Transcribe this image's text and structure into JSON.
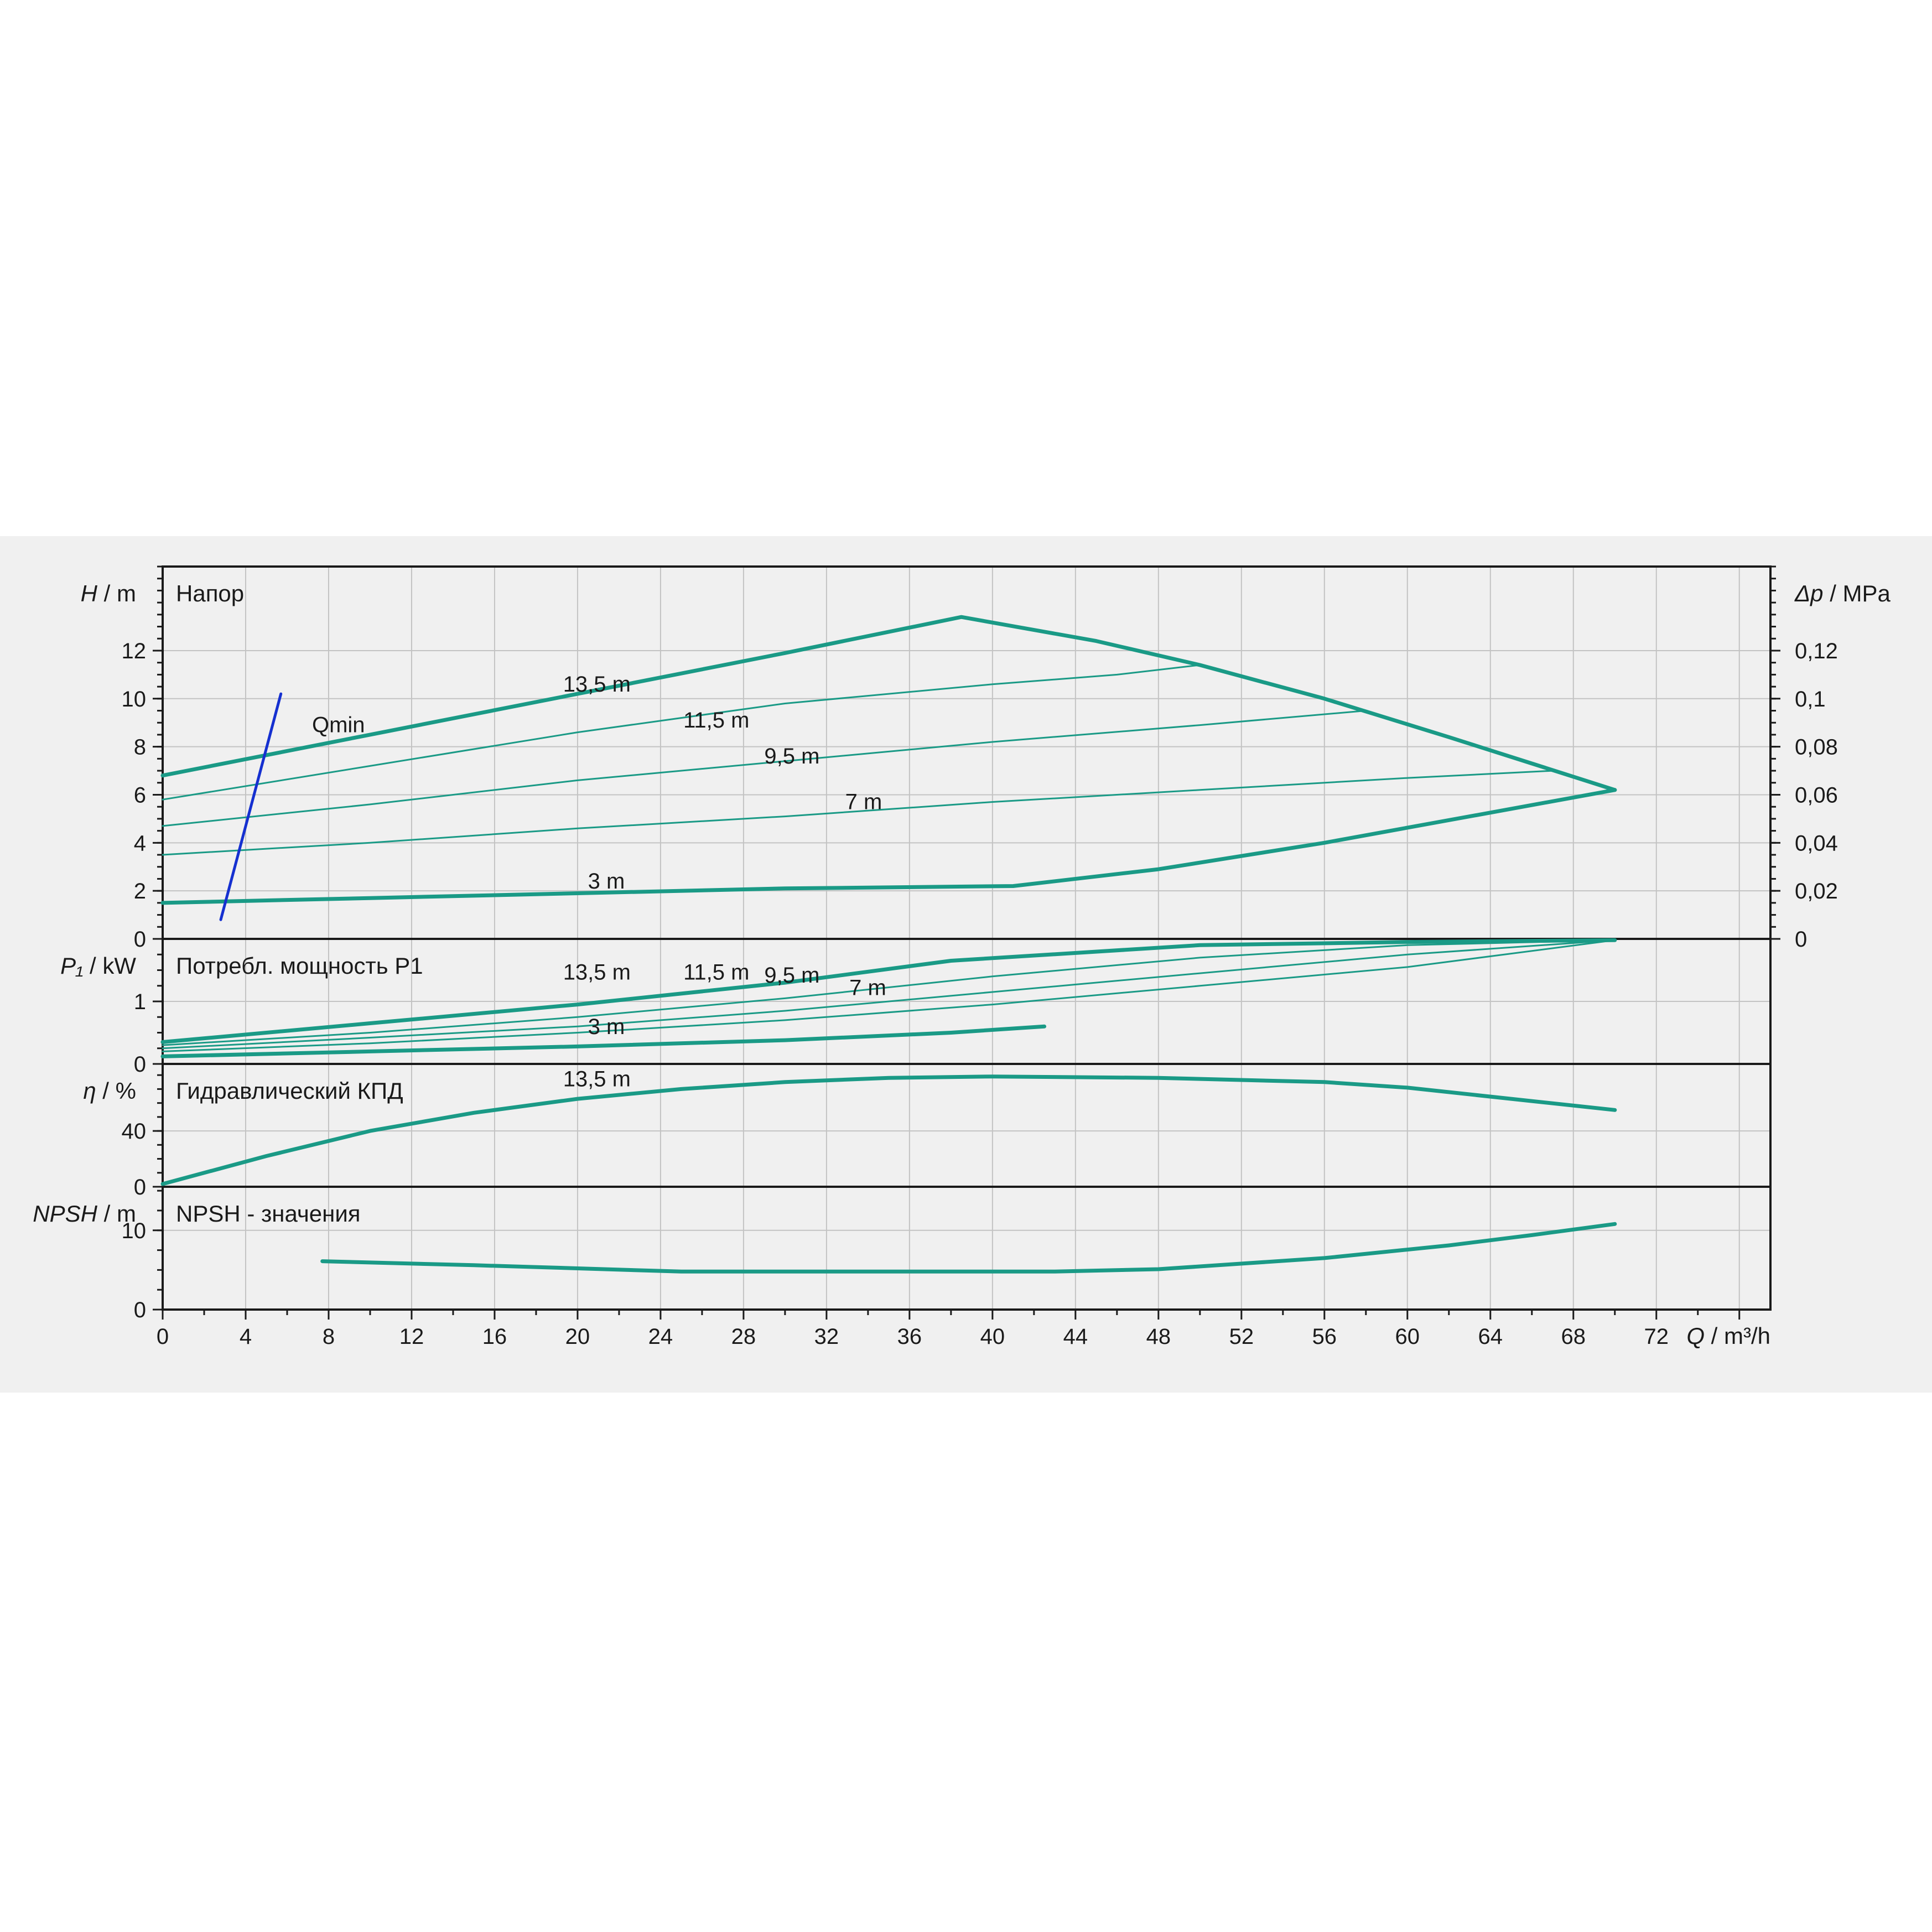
{
  "colors": {
    "curve": "#1a9a86",
    "qmin": "#1530d0",
    "grid": "#c3c3c3",
    "axis": "#1a1a1a",
    "panel": "#f0f0f0"
  },
  "chart_data": [
    {
      "type": "line",
      "title": "Напор",
      "ylabel_sym": "H",
      "ylabel_unit": " / m",
      "y2label_sym": "Δp",
      "y2label_unit": " / MPa",
      "ylim": [
        0,
        15.5
      ],
      "yticks": [
        0,
        2,
        4,
        6,
        8,
        10,
        12
      ],
      "y2ticks": [
        "0",
        "0,02",
        "0,04",
        "0,06",
        "0,08",
        "0,1",
        "0,12"
      ],
      "series": [
        {
          "name": "13,5 m",
          "width": "thick",
          "points": [
            [
              0,
              6.8
            ],
            [
              10,
              8.5
            ],
            [
              20,
              10.2
            ],
            [
              30,
              11.9
            ],
            [
              38.5,
              13.4
            ],
            [
              45,
              12.4
            ],
            [
              50,
              11.4
            ],
            [
              56,
              10.0
            ],
            [
              62,
              8.4
            ],
            [
              66,
              7.3
            ],
            [
              70,
              6.2
            ]
          ]
        },
        {
          "name": "11,5 m",
          "width": "thin",
          "points": [
            [
              0,
              5.8
            ],
            [
              10,
              7.2
            ],
            [
              20,
              8.6
            ],
            [
              30,
              9.8
            ],
            [
              40,
              10.6
            ],
            [
              46,
              11.0
            ],
            [
              50,
              11.4
            ]
          ]
        },
        {
          "name": "9,5 m",
          "width": "thin",
          "points": [
            [
              0,
              4.7
            ],
            [
              10,
              5.6
            ],
            [
              20,
              6.6
            ],
            [
              30,
              7.4
            ],
            [
              40,
              8.2
            ],
            [
              50,
              8.9
            ],
            [
              58,
              9.5
            ]
          ]
        },
        {
          "name": "7 m",
          "width": "thin",
          "points": [
            [
              0,
              3.5
            ],
            [
              10,
              4.0
            ],
            [
              20,
              4.6
            ],
            [
              30,
              5.1
            ],
            [
              40,
              5.7
            ],
            [
              50,
              6.2
            ],
            [
              60,
              6.7
            ],
            [
              67,
              7.0
            ]
          ]
        },
        {
          "name": "3 m",
          "width": "thick",
          "points": [
            [
              0,
              1.5
            ],
            [
              10,
              1.7
            ],
            [
              20,
              1.9
            ],
            [
              30,
              2.1
            ],
            [
              41,
              2.2
            ],
            [
              48,
              2.9
            ],
            [
              56,
              4.0
            ],
            [
              63,
              5.1
            ],
            [
              70,
              6.2
            ]
          ]
        },
        {
          "name": "Qmin",
          "width": "qmin",
          "points": [
            [
              2.8,
              0.8
            ],
            [
              5.7,
              10.2
            ]
          ]
        }
      ],
      "labels": [
        {
          "text": "13,5 m",
          "x": 19.3,
          "y": 10.3
        },
        {
          "text": "11,5 m",
          "x": 25.1,
          "y": 8.8
        },
        {
          "text": "9,5 m",
          "x": 29.0,
          "y": 7.3
        },
        {
          "text": "7 m",
          "x": 32.9,
          "y": 5.4
        },
        {
          "text": "3 m",
          "x": 20.5,
          "y": 2.1
        },
        {
          "text": "Qmin",
          "x": 7.2,
          "y": 8.6
        }
      ]
    },
    {
      "type": "line",
      "title": "Потребл. мощность P1",
      "ylabel_sym": "P₁",
      "ylabel_unit": " / kW",
      "ylim": [
        0,
        2.0
      ],
      "yticks": [
        0,
        1
      ],
      "series": [
        {
          "name": "13,5 m",
          "width": "thick",
          "points": [
            [
              0,
              0.35
            ],
            [
              10,
              0.65
            ],
            [
              20,
              0.95
            ],
            [
              30,
              1.3
            ],
            [
              38,
              1.65
            ],
            [
              50,
              1.9
            ],
            [
              60,
              1.95
            ],
            [
              70,
              1.98
            ]
          ]
        },
        {
          "name": "11,5 m",
          "width": "thin",
          "points": [
            [
              0,
              0.3
            ],
            [
              10,
              0.5
            ],
            [
              20,
              0.75
            ],
            [
              30,
              1.05
            ],
            [
              40,
              1.4
            ],
            [
              50,
              1.7
            ],
            [
              60,
              1.9
            ],
            [
              70,
              1.98
            ]
          ]
        },
        {
          "name": "9,5 m",
          "width": "thin",
          "points": [
            [
              0,
              0.25
            ],
            [
              10,
              0.42
            ],
            [
              20,
              0.6
            ],
            [
              30,
              0.85
            ],
            [
              40,
              1.15
            ],
            [
              50,
              1.45
            ],
            [
              60,
              1.75
            ],
            [
              70,
              1.98
            ]
          ]
        },
        {
          "name": "7 m",
          "width": "thin",
          "points": [
            [
              0,
              0.2
            ],
            [
              10,
              0.33
            ],
            [
              20,
              0.5
            ],
            [
              30,
              0.7
            ],
            [
              40,
              0.95
            ],
            [
              50,
              1.25
            ],
            [
              60,
              1.55
            ],
            [
              70,
              1.98
            ]
          ]
        },
        {
          "name": "3 m",
          "width": "thick",
          "points": [
            [
              0,
              0.12
            ],
            [
              10,
              0.2
            ],
            [
              20,
              0.28
            ],
            [
              30,
              0.38
            ],
            [
              38,
              0.5
            ],
            [
              42.5,
              0.6
            ]
          ]
        }
      ],
      "labels": [
        {
          "text": "13,5 m",
          "x": 19.3,
          "y": 1.35
        },
        {
          "text": "11,5 m",
          "x": 25.1,
          "y": 1.35
        },
        {
          "text": "9,5 m",
          "x": 29.0,
          "y": 1.3
        },
        {
          "text": "7 m",
          "x": 33.1,
          "y": 1.1
        },
        {
          "text": "3 m",
          "x": 20.5,
          "y": 0.48
        }
      ]
    },
    {
      "type": "line",
      "title": "Гидравлический КПД",
      "ylabel_sym": "η",
      "ylabel_unit": " / %",
      "ylim": [
        0,
        88
      ],
      "yticks": [
        0,
        40
      ],
      "series": [
        {
          "name": "13,5 m",
          "width": "thick",
          "points": [
            [
              0,
              2
            ],
            [
              5,
              22
            ],
            [
              10,
              40
            ],
            [
              15,
              53
            ],
            [
              20,
              63
            ],
            [
              25,
              70
            ],
            [
              30,
              75
            ],
            [
              35,
              78
            ],
            [
              40,
              79
            ],
            [
              48,
              78
            ],
            [
              56,
              75
            ],
            [
              60,
              71
            ],
            [
              65,
              63
            ],
            [
              70,
              55
            ]
          ]
        }
      ],
      "labels": [
        {
          "text": "13,5 m",
          "x": 19.3,
          "y": 72
        }
      ]
    },
    {
      "type": "line",
      "title": "NPSH - значения",
      "ylabel_sym": "NPSH",
      "ylabel_unit": " / m",
      "ylim": [
        0,
        15.5
      ],
      "yticks": [
        0,
        10
      ],
      "series": [
        {
          "name": "NPSH",
          "width": "thick",
          "points": [
            [
              7.7,
              6.1
            ],
            [
              15,
              5.6
            ],
            [
              20,
              5.2
            ],
            [
              25,
              4.8
            ],
            [
              30,
              4.8
            ],
            [
              43,
              4.8
            ],
            [
              48,
              5.1
            ],
            [
              56,
              6.5
            ],
            [
              62,
              8.1
            ],
            [
              66,
              9.4
            ],
            [
              70,
              10.8
            ]
          ]
        }
      ],
      "labels": []
    }
  ],
  "xaxis": {
    "xlim": [
      0,
      77.5
    ],
    "ticks": [
      0,
      4,
      8,
      12,
      16,
      20,
      24,
      28,
      32,
      36,
      40,
      44,
      48,
      52,
      56,
      60,
      64,
      68,
      72
    ],
    "label_sym": "Q",
    "label_unit": " / m³/h"
  }
}
